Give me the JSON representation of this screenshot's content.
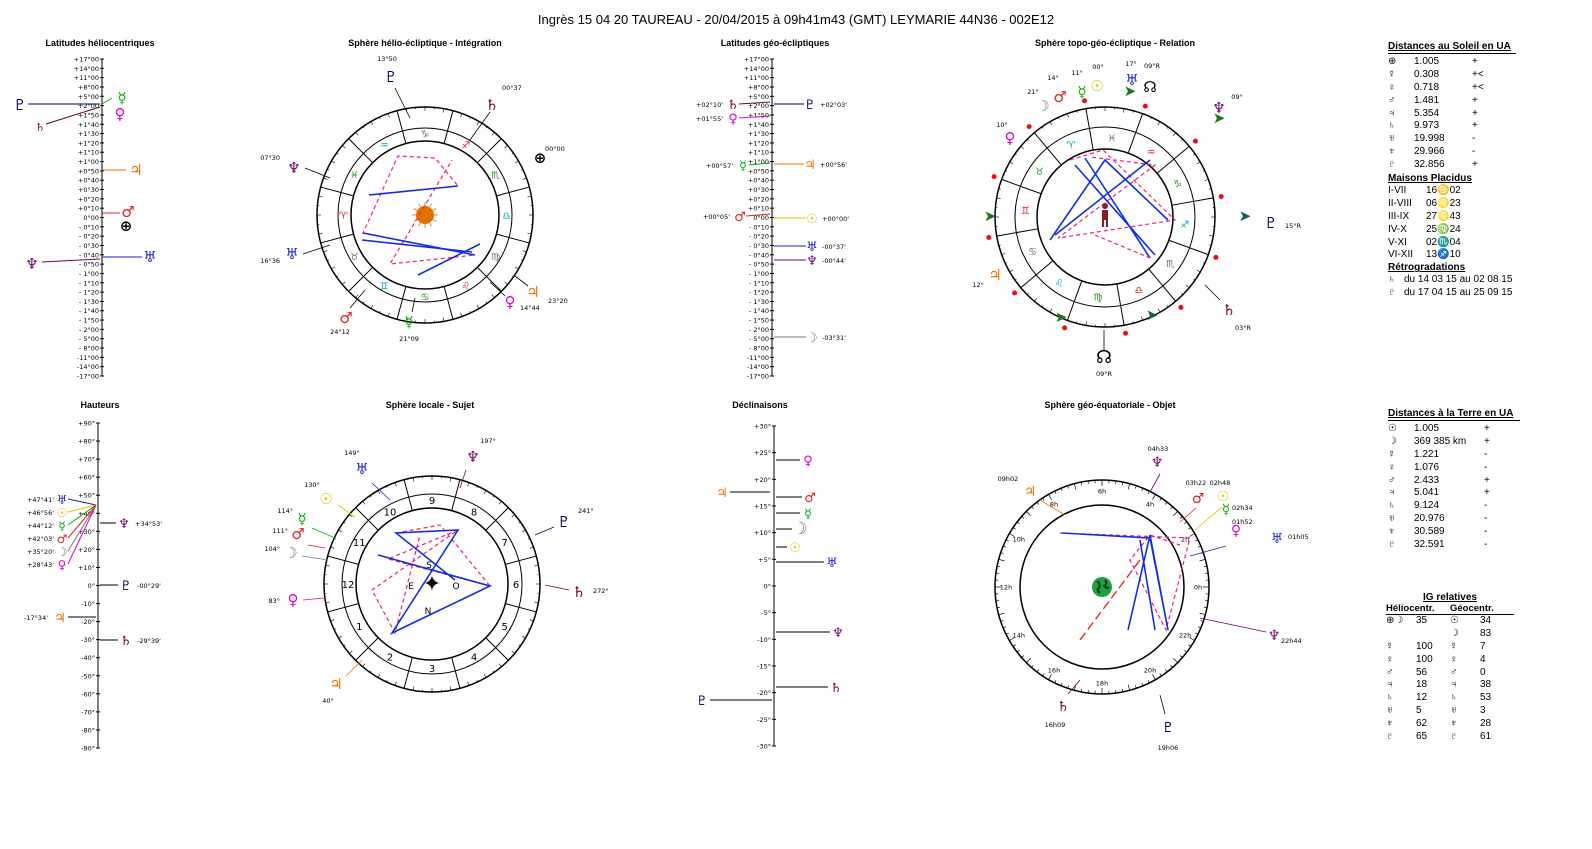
{
  "title": "Ingrès 15 04 20 TAUREAU   - 20/04/2015 à 09h41m43 (GMT)  LEYMARIE  44N36 - 002E12",
  "panels": {
    "lat_helio": "Latitudes héliocentriques",
    "sphere_helio": "Sphère hélio-écliptique - Intégration",
    "lat_geo": "Latitudes géo-écliptiques",
    "sphere_topo": "Sphère topo-géo-écliptique - Relation",
    "hauteurs": "Hauteurs",
    "sphere_locale": "Sphère locale - Sujet",
    "declinaisons": "Déclinaisons",
    "sphere_geo_eq": "Sphère géo-équatoriale - Objet"
  },
  "colors": {
    "sun": "#e0c000",
    "moon": "#7a7a7a",
    "mercury": "#00b000",
    "venus": "#e000d0",
    "mars": "#e02020",
    "jupiter": "#f07000",
    "saturn": "#700030",
    "uranus": "#2020d0",
    "neptune": "#700070",
    "pluto": "#000050",
    "aspect_hard": "#1030e0",
    "aspect_soft": "#f0207a"
  },
  "lat_scale": [
    "+17°00",
    "+14°00",
    "+11°00",
    "+8°00",
    "+5°00",
    "+2°00",
    "+1°50",
    "+1°40",
    "+1°30",
    "+1°20",
    "+1°10",
    "+1°00",
    "+0°50",
    "+0°40",
    "+0°30",
    "+0°20",
    "+0°10",
    "0°00",
    "- 0°10",
    "- 0°20",
    "- 0°30",
    "- 0°40",
    "- 0°50",
    "- 1°00",
    "- 1°10",
    "- 1°20",
    "- 1°30",
    "- 1°40",
    "- 1°50",
    "- 2°00",
    "- 5°00",
    "- 8°00",
    "-11°00",
    "-14°00",
    "-17°00"
  ],
  "lat_geo_labels": {
    "saturn": "+02°10'",
    "venus": "+01°55'",
    "mercury": "+00°57'",
    "mars": "+00°05'",
    "pluto": "+02°03'",
    "jupiter": "+00°56'",
    "sun": "+00°00'",
    "uranus": "-00°37'",
    "neptune": "-00°44'",
    "moon": "-03°31'"
  },
  "haut_scale": [
    "+90°",
    "+80°",
    "+70°",
    "+60°",
    "+50°",
    "+40°",
    "+30°",
    "+20°",
    "+10°",
    "0°",
    "-10°",
    "-20°",
    "-30°",
    "-40°",
    "-50°",
    "-60°",
    "-70°",
    "-80°",
    "-90°"
  ],
  "haut_labels": {
    "uranus": "+47°41'",
    "sun": "+46°56'",
    "mercury": "+44°12'",
    "mars": "+42°03'",
    "moon": "+35°20'",
    "venus": "+28°43'",
    "neptune": "+34°53'",
    "pluto": "-00°29'",
    "jupiter": "-17°34'",
    "saturn": "-29°39'"
  },
  "decl_scale": [
    "+30°",
    "+25°",
    "+20°",
    "+15°",
    "+10°",
    "+5°",
    "0°",
    "-5°",
    "-10°",
    "-15°",
    "-20°",
    "-25°",
    "-30°"
  ],
  "helio_labels": {
    "pluto": "13°50",
    "saturn": "00°37",
    "earth": "00°00",
    "neptune": "07°30",
    "uranus": "16°36",
    "mars": "24°12",
    "mercury": "21°09",
    "venus": "14°44",
    "jupiter": "23°20"
  },
  "topo_labels": {
    "uranus": "17°",
    "node": "09°R",
    "sun": "00°",
    "mercury": "11°",
    "mars": "14°",
    "moon": "21°",
    "venus": "10°",
    "neptune": "09°",
    "pluto": "15°R",
    "jupiter": "12°",
    "saturn": "03°R",
    "node_bottom": "09°R"
  },
  "locale_labels": {
    "uranus": "149°",
    "neptune": "197°",
    "sun": "130°",
    "mercury": "114°",
    "mars": "111°",
    "moon": "104°",
    "venus": "83°",
    "pluto": "241°",
    "saturn": "272°",
    "jupiter": "40°",
    "south": "S",
    "north": "N",
    "east": "E",
    "west": "O"
  },
  "eq_labels": {
    "jupiter": "09h02",
    "neptune_top": "04h33",
    "mars": "03h22",
    "sun": "02h48",
    "mercury": "02h34",
    "venus": "01h52",
    "uranus": "01h05",
    "neptune": "22h44",
    "saturn": "16h09",
    "pluto": "19h06"
  },
  "eq_hours": [
    "6h",
    "4h",
    "2h",
    "0h",
    "22h",
    "20h",
    "18h",
    "16h",
    "14h",
    "12h",
    "10h",
    "8h"
  ],
  "dist_soleil": {
    "heading": "Distances au Soleil en UA",
    "rows": [
      {
        "glyph": "⊕",
        "value": "1.005",
        "sign": "+"
      },
      {
        "glyph": "☿",
        "value": "0.308",
        "sign": "+<"
      },
      {
        "glyph": "♀",
        "value": "0.718",
        "sign": "+<"
      },
      {
        "glyph": "♂",
        "value": "1.481",
        "sign": "+"
      },
      {
        "glyph": "♃",
        "value": "5.354",
        "sign": "+"
      },
      {
        "glyph": "♄",
        "value": "9.973",
        "sign": "+"
      },
      {
        "glyph": "♅",
        "value": "19.998",
        "sign": "-"
      },
      {
        "glyph": "♆",
        "value": "29.966",
        "sign": "-"
      },
      {
        "glyph": "♇",
        "value": "32.856",
        "sign": "+"
      }
    ]
  },
  "maisons": {
    "heading": "Maisons Placidus",
    "rows": [
      {
        "name": "I-VII",
        "value": "16♋02"
      },
      {
        "name": "II-VIII",
        "value": "06♌23"
      },
      {
        "name": "III-IX",
        "value": "27♌43"
      },
      {
        "name": "IV-X",
        "value": "25♍24"
      },
      {
        "name": "V-XI",
        "value": "02♏04"
      },
      {
        "name": "VI-XII",
        "value": "13♐10"
      }
    ]
  },
  "retro": {
    "heading": "Rétrogradations",
    "rows": [
      {
        "glyph": "♄",
        "text": "du 14 03 15 au 02 08 15"
      },
      {
        "glyph": "♇",
        "text": "du 17 04 15 au 25 09 15"
      }
    ]
  },
  "dist_terre": {
    "heading": "Distances à la Terre en UA",
    "rows": [
      {
        "glyph": "☉",
        "value": "1.005",
        "sign": "+"
      },
      {
        "glyph": "☽",
        "value": "369 385 km",
        "sign": "+"
      },
      {
        "glyph": "☿",
        "value": "1.221",
        "sign": "-"
      },
      {
        "glyph": "♀",
        "value": "1.076",
        "sign": "-"
      },
      {
        "glyph": "♂",
        "value": "2.433",
        "sign": "+"
      },
      {
        "glyph": "♃",
        "value": "5.041",
        "sign": "+"
      },
      {
        "glyph": "♄",
        "value": "9.124",
        "sign": "-"
      },
      {
        "glyph": "♅",
        "value": "20.976",
        "sign": "-"
      },
      {
        "glyph": "♆",
        "value": "30.589",
        "sign": "-"
      },
      {
        "glyph": "♇",
        "value": "32.591",
        "sign": "-"
      }
    ]
  },
  "ig": {
    "heading": "IG relatives",
    "col1": "Héliocentr.",
    "col2": "Géocentr.",
    "rows": [
      {
        "h": "⊕☽",
        "hv": "35",
        "g": "☉",
        "gv": "34"
      },
      {
        "h": "",
        "hv": "",
        "g": "☽",
        "gv": "83"
      },
      {
        "h": "☿",
        "hv": "100",
        "g": "☿",
        "gv": "7"
      },
      {
        "h": "♀",
        "hv": "100",
        "g": "♀",
        "gv": "4"
      },
      {
        "h": "♂",
        "hv": "56",
        "g": "♂",
        "gv": "0"
      },
      {
        "h": "♃",
        "hv": "18",
        "g": "♃",
        "gv": "38"
      },
      {
        "h": "♄",
        "hv": "12",
        "g": "♄",
        "gv": "53"
      },
      {
        "h": "♅",
        "hv": "5",
        "g": "♅",
        "gv": "3"
      },
      {
        "h": "♆",
        "hv": "62",
        "g": "♆",
        "gv": "28"
      },
      {
        "h": "♇",
        "hv": "65",
        "g": "♇",
        "gv": "61"
      }
    ]
  }
}
